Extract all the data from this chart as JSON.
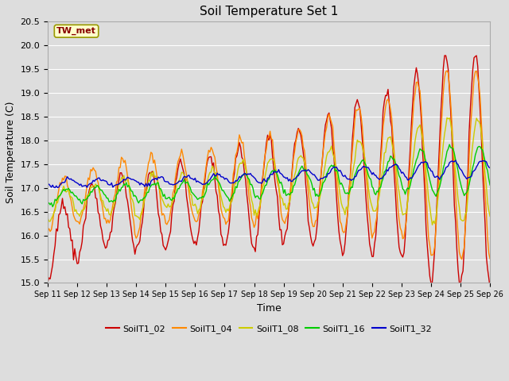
{
  "title": "Soil Temperature Set 1",
  "xlabel": "Time",
  "ylabel": "Soil Temperature (C)",
  "ylim": [
    15.0,
    20.5
  ],
  "yticks": [
    15.0,
    15.5,
    16.0,
    16.5,
    17.0,
    17.5,
    18.0,
    18.5,
    19.0,
    19.5,
    20.0,
    20.5
  ],
  "background_color": "#dddddd",
  "plot_bg_color": "#dddddd",
  "grid_color": "white",
  "annotation_text": "TW_met",
  "annotation_bg": "#ffffcc",
  "annotation_border": "#999900",
  "annotation_text_color": "#880000",
  "series_colors": {
    "SoilT1_02": "#cc0000",
    "SoilT1_04": "#ff8800",
    "SoilT1_08": "#cccc00",
    "SoilT1_16": "#00cc00",
    "SoilT1_32": "#0000cc"
  },
  "xtick_labels": [
    "Sep 11",
    "Sep 12",
    "Sep 13",
    "Sep 14",
    "Sep 15",
    "Sep 16",
    "Sep 17",
    "Sep 18",
    "Sep 19",
    "Sep 20",
    "Sep 21",
    "Sep 22",
    "Sep 23",
    "Sep 24",
    "Sep 25",
    "Sep 26"
  ],
  "figsize": [
    6.4,
    4.8
  ],
  "dpi": 100,
  "linewidth": 1.0,
  "daily_amplitudes_02": [
    0.7,
    0.7,
    0.75,
    0.8,
    0.85,
    0.9,
    1.0,
    1.1,
    1.1,
    1.3,
    1.5,
    1.7,
    1.8,
    2.4,
    2.4,
    2.2
  ],
  "daily_amplitudes_04": [
    0.55,
    0.55,
    0.6,
    0.9,
    0.7,
    0.75,
    0.85,
    0.95,
    0.9,
    1.1,
    1.3,
    1.4,
    1.5,
    2.0,
    2.0,
    1.8
  ],
  "daily_amplitudes_08": [
    0.3,
    0.3,
    0.3,
    0.5,
    0.35,
    0.4,
    0.45,
    0.6,
    0.5,
    0.6,
    0.7,
    0.75,
    0.8,
    1.1,
    1.1,
    1.0
  ],
  "daily_amplitudes_16": [
    0.15,
    0.15,
    0.15,
    0.18,
    0.18,
    0.2,
    0.22,
    0.28,
    0.25,
    0.3,
    0.32,
    0.35,
    0.38,
    0.5,
    0.5,
    0.45
  ],
  "daily_amplitudes_32": [
    0.08,
    0.08,
    0.08,
    0.08,
    0.08,
    0.09,
    0.09,
    0.1,
    0.1,
    0.12,
    0.13,
    0.14,
    0.15,
    0.18,
    0.18,
    0.16
  ],
  "base_trend_02": [
    15.7,
    16.2,
    16.5,
    16.5,
    16.6,
    16.7,
    16.8,
    16.9,
    17.0,
    17.1,
    17.2,
    17.25,
    17.3,
    17.4,
    17.4,
    17.3
  ],
  "base_trend_04": [
    16.6,
    16.8,
    16.85,
    16.9,
    16.95,
    17.0,
    17.1,
    17.15,
    17.2,
    17.3,
    17.35,
    17.4,
    17.45,
    17.5,
    17.5,
    17.45
  ],
  "base_trend_08": [
    16.65,
    16.75,
    16.8,
    16.85,
    16.9,
    16.95,
    17.0,
    17.05,
    17.1,
    17.15,
    17.2,
    17.25,
    17.3,
    17.35,
    17.35,
    17.3
  ],
  "base_trend_16": [
    16.8,
    16.85,
    16.88,
    16.9,
    16.93,
    16.96,
    17.0,
    17.05,
    17.1,
    17.15,
    17.2,
    17.25,
    17.3,
    17.35,
    17.38,
    17.35
  ],
  "base_trend_32": [
    17.1,
    17.1,
    17.12,
    17.13,
    17.15,
    17.17,
    17.2,
    17.22,
    17.25,
    17.28,
    17.3,
    17.32,
    17.35,
    17.38,
    17.4,
    17.4
  ],
  "phase_02": 0.25,
  "phase_04": 0.28,
  "phase_08": 0.33,
  "phase_16": 0.4,
  "phase_32": 0.5
}
